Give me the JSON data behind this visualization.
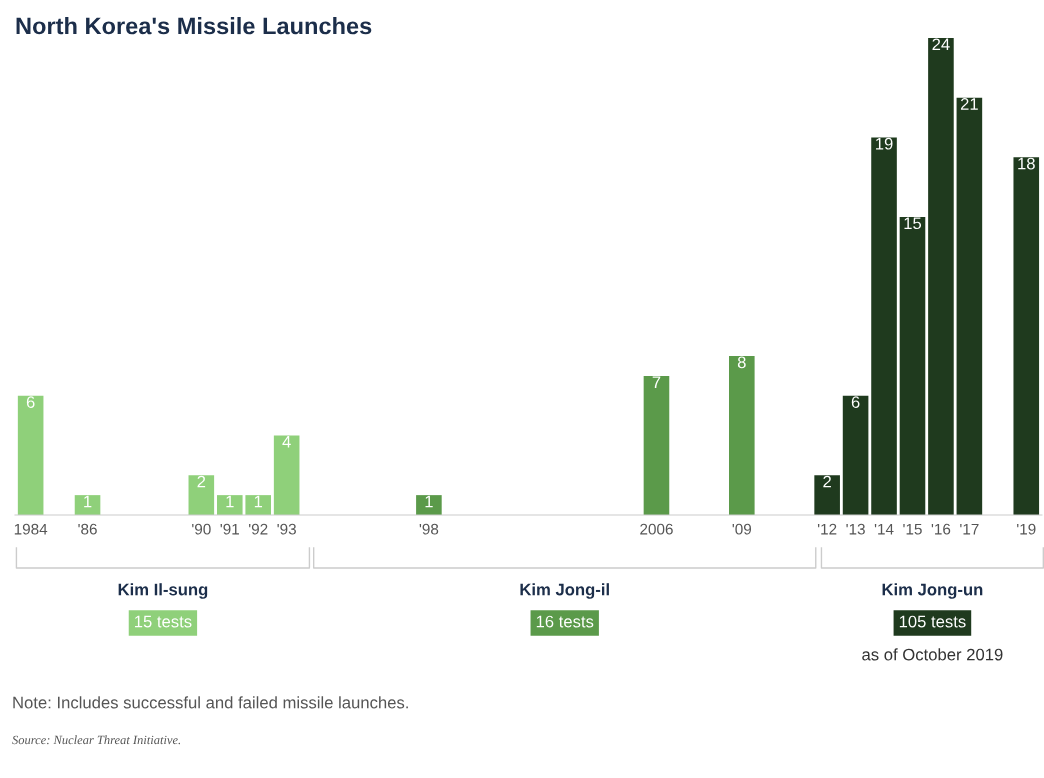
{
  "chart_data": {
    "type": "bar",
    "title": "North Korea's Missile Launches",
    "categories": [
      "1984",
      null,
      "'86",
      null,
      null,
      null,
      "'90",
      "'91",
      "'92",
      "'93",
      null,
      null,
      null,
      null,
      "'98",
      null,
      null,
      null,
      null,
      null,
      null,
      null,
      "2006",
      null,
      null,
      "'09",
      null,
      null,
      "'12",
      "'13",
      "'14",
      "'15",
      "'16",
      "'17",
      null,
      "'19"
    ],
    "values": [
      6,
      null,
      1,
      null,
      null,
      null,
      2,
      1,
      1,
      4,
      null,
      null,
      null,
      null,
      1,
      null,
      null,
      null,
      null,
      null,
      null,
      null,
      7,
      null,
      null,
      8,
      null,
      null,
      2,
      6,
      19,
      15,
      24,
      21,
      null,
      18
    ],
    "colors": [
      "#8fd07a",
      "#8fd07a",
      "#8fd07a",
      "#8fd07a",
      "#8fd07a",
      "#8fd07a",
      "#8fd07a",
      "#8fd07a",
      "#8fd07a",
      "#8fd07a",
      "#5b9a4a",
      "#5b9a4a",
      "#5b9a4a",
      "#5b9a4a",
      "#5b9a4a",
      "#5b9a4a",
      "#5b9a4a",
      "#5b9a4a",
      "#5b9a4a",
      "#5b9a4a",
      "#5b9a4a",
      "#5b9a4a",
      "#5b9a4a",
      "#5b9a4a",
      "#5b9a4a",
      "#5b9a4a",
      "#5b9a4a",
      "#5b9a4a",
      "#1f3a1e",
      "#1f3a1e",
      "#1f3a1e",
      "#1f3a1e",
      "#1f3a1e",
      "#1f3a1e",
      "#1f3a1e",
      "#1f3a1e"
    ],
    "data_labels": true,
    "grid": false,
    "legend": false,
    "annotations": [
      "Kim Il-sung",
      "15 tests",
      "Kim Jong-il",
      "16 tests",
      "Kim Jong-un",
      "105 tests",
      "as of October 2019",
      "Note: Includes successful and failed missile launches.",
      "Source: Nuclear Threat Initiative."
    ]
  }
}
